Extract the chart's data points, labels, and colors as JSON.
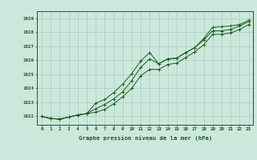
{
  "title": "Graphe pression niveau de la mer (hPa)",
  "bg_color": "#cce8dc",
  "grid_color": "#aaccbc",
  "line_color": "#1a5c1a",
  "marker_color": "#1a5c1a",
  "xlim": [
    -0.5,
    23.5
  ],
  "ylim": [
    1021.4,
    1029.5
  ],
  "yticks": [
    1022,
    1023,
    1024,
    1025,
    1026,
    1027,
    1028,
    1029
  ],
  "xticks": [
    0,
    1,
    2,
    3,
    4,
    5,
    6,
    7,
    8,
    9,
    10,
    11,
    12,
    13,
    14,
    15,
    16,
    17,
    18,
    19,
    20,
    21,
    22,
    23
  ],
  "series1": [
    1022.0,
    1021.85,
    1021.8,
    1021.95,
    1022.1,
    1022.2,
    1022.95,
    1023.2,
    1023.7,
    1024.3,
    1025.05,
    1025.95,
    1026.55,
    1025.75,
    1026.1,
    1026.15,
    1026.55,
    1026.9,
    1027.55,
    1028.35,
    1028.4,
    1028.45,
    1028.55,
    1028.85
  ],
  "series2": [
    1022.0,
    1021.85,
    1021.8,
    1021.95,
    1022.1,
    1022.2,
    1022.55,
    1022.85,
    1023.25,
    1023.75,
    1024.55,
    1025.5,
    1026.1,
    1025.75,
    1026.1,
    1026.15,
    1026.55,
    1026.9,
    1027.45,
    1028.1,
    1028.1,
    1028.2,
    1028.45,
    1028.75
  ],
  "series3": [
    1022.0,
    1021.85,
    1021.8,
    1021.95,
    1022.1,
    1022.2,
    1022.3,
    1022.5,
    1022.9,
    1023.4,
    1024.0,
    1024.9,
    1025.35,
    1025.35,
    1025.7,
    1025.8,
    1026.2,
    1026.6,
    1027.1,
    1027.85,
    1027.85,
    1027.95,
    1028.2,
    1028.55
  ]
}
